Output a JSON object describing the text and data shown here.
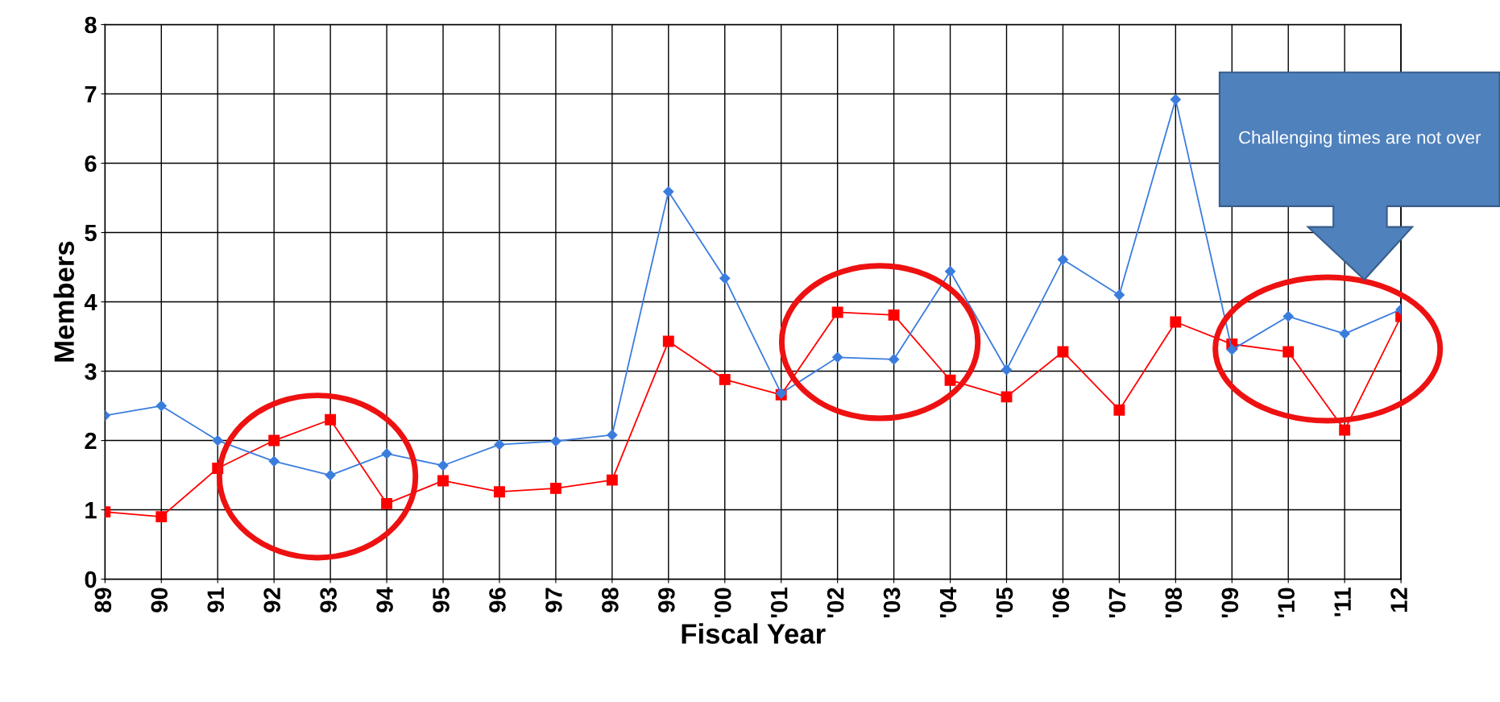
{
  "chart_data": {
    "type": "line",
    "xlabel": "Fiscal Year",
    "ylabel": "Members",
    "categories": [
      "89",
      "90",
      "91",
      "92",
      "93",
      "94",
      "95",
      "96",
      "97",
      "98",
      "99",
      "'00",
      "'01",
      "'02",
      "'03",
      "'04",
      "'05",
      "'06",
      "'07",
      "'08",
      "'09",
      "'10",
      "'11",
      "12"
    ],
    "series": [
      {
        "color": "#3b7ddd",
        "marker": "diamond",
        "values": [
          2.36,
          2.5,
          2.0,
          1.7,
          1.5,
          1.81,
          1.64,
          1.94,
          1.99,
          2.08,
          5.59,
          4.34,
          2.68,
          3.2,
          3.17,
          4.44,
          3.02,
          4.61,
          4.1,
          6.92,
          3.31,
          3.79,
          3.54,
          3.89
        ]
      },
      {
        "color": "#ff0000",
        "marker": "square",
        "values": [
          0.97,
          0.9,
          1.6,
          2.0,
          2.3,
          1.09,
          1.42,
          1.26,
          1.31,
          1.43,
          3.43,
          2.88,
          2.66,
          3.85,
          3.81,
          2.87,
          2.63,
          3.28,
          2.44,
          3.71,
          3.39,
          3.28,
          2.15,
          3.79
        ]
      }
    ],
    "ylim": [
      0,
      8
    ],
    "yticks": [
      0,
      1,
      2,
      3,
      4,
      5,
      6,
      7,
      8
    ],
    "grid": true,
    "line_style": "solid",
    "annotations": [
      "Challenging times are not over"
    ]
  }
}
